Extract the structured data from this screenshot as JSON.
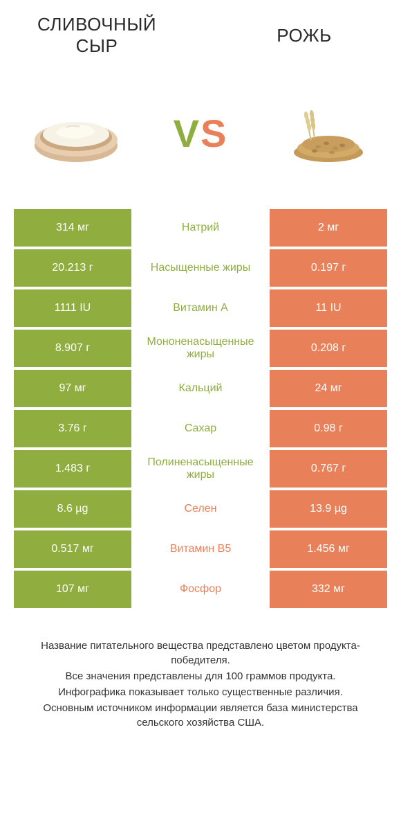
{
  "header": {
    "product_left": "СЛИВОЧНЫЙ СЫР",
    "product_right": "РОЖЬ",
    "vs": "VS"
  },
  "colors": {
    "green": "#8fae3f",
    "orange": "#e8805a",
    "text": "#2a2a2a",
    "bg": "#ffffff"
  },
  "table": {
    "rows": [
      {
        "left": "314 мг",
        "mid": "Натрий",
        "right": "2 мг",
        "winner": "left"
      },
      {
        "left": "20.213 г",
        "mid": "Насыщенные жиры",
        "right": "0.197 г",
        "winner": "left"
      },
      {
        "left": "1111 IU",
        "mid": "Витамин A",
        "right": "11 IU",
        "winner": "left"
      },
      {
        "left": "8.907 г",
        "mid": "Мононенасыщенные жиры",
        "right": "0.208 г",
        "winner": "left"
      },
      {
        "left": "97 мг",
        "mid": "Кальций",
        "right": "24 мг",
        "winner": "left"
      },
      {
        "left": "3.76 г",
        "mid": "Сахар",
        "right": "0.98 г",
        "winner": "left"
      },
      {
        "left": "1.483 г",
        "mid": "Полиненасыщенные жиры",
        "right": "0.767 г",
        "winner": "left"
      },
      {
        "left": "8.6 µg",
        "mid": "Селен",
        "right": "13.9 µg",
        "winner": "right"
      },
      {
        "left": "0.517 мг",
        "mid": "Витамин B5",
        "right": "1.456 мг",
        "winner": "right"
      },
      {
        "left": "107 мг",
        "mid": "Фосфор",
        "right": "332 мг",
        "winner": "right"
      }
    ]
  },
  "footer": {
    "line1": "Название питательного вещества представлено цветом продукта-победителя.",
    "line2": "Все значения представлены для 100 граммов продукта.",
    "line3": "Инфографика показывает только существенные различия.",
    "line4": "Основным источником информации является база министерства сельского хозяйства США."
  }
}
